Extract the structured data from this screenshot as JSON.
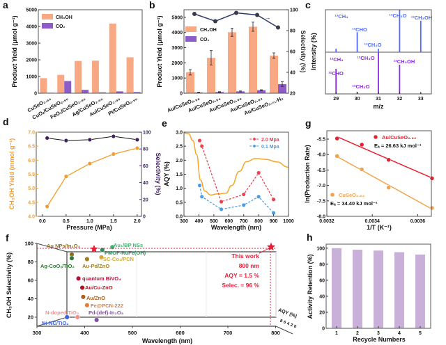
{
  "chart_data": [
    {
      "panel": "a",
      "type": "bar",
      "categories": [
        "CuSeO₂.₉₀",
        "CuOₓ/CuSeO₂.₉₀",
        "FeOₓ/CuSeO₂.₉₀",
        "Ag/CuSeO₂.₉₀",
        "Au/CuSeO₂.₉₀",
        "Pt/CuSeO₂.₉₀"
      ],
      "series": [
        {
          "name": "CH₃OH",
          "color": "#f8a882",
          "values": [
            900,
            1100,
            1930,
            1950,
            4170,
            2150
          ]
        },
        {
          "name": "CO₂",
          "color": "#8e5cc8",
          "values": [
            30,
            730,
            200,
            50,
            110,
            70
          ]
        }
      ],
      "ylabel": "Product Yield (μmol g⁻¹)",
      "ylim": [
        0,
        5000
      ],
      "yticks": [
        "0",
        "1000",
        "2000",
        "3000",
        "4000",
        "5000"
      ],
      "legend": "top-left"
    },
    {
      "panel": "b",
      "type": "bar",
      "categories": [
        "Au/CuSeO₂.₉₈",
        "Au/CuSeO₂.₉₄",
        "Au/CuSeO₂.₉₀",
        "Au/CuSeO₂.₈₂",
        "Au/CuSeO₂.₇₁-H₂"
      ],
      "series": [
        {
          "name": "CH₃OH",
          "color": "#f8a882",
          "values": [
            1380,
            2330,
            4020,
            4380,
            2480
          ],
          "errors": [
            180,
            480,
            270,
            300,
            180
          ]
        },
        {
          "name": "CO₂",
          "color": "#8e5cc8",
          "values": [
            50,
            80,
            120,
            200,
            600
          ],
          "errors": [
            20,
            20,
            30,
            30,
            150
          ]
        },
        {
          "type": "line",
          "axis": "right",
          "color": "#2e3a6e",
          "values": [
            96,
            89,
            97,
            95,
            83
          ]
        }
      ],
      "ylabel": "Product Yield (μmol g⁻¹)",
      "y2label": "Selectivity (%)",
      "ylim": [
        0,
        5500
      ],
      "y2lim": [
        20,
        100
      ],
      "yticks": [
        "0",
        "1000",
        "2000",
        "3000",
        "4000",
        "5000"
      ],
      "y2ticks": [
        "20",
        "40",
        "60",
        "80",
        "100"
      ],
      "arrow": "→",
      "legend": "middle-left"
    },
    {
      "panel": "c",
      "type": "bar",
      "xlabel": "m/z",
      "ylabel": "Intensity (%)",
      "xlim": [
        28.5,
        33.5
      ],
      "xticks": [
        "29",
        "30",
        "31",
        "32",
        "33"
      ],
      "top": {
        "color": "#4f6bff",
        "mz": [
          29,
          30,
          31,
          32,
          33
        ],
        "intensity": [
          0.08,
          0.47,
          0.08,
          1.0,
          0.74
        ],
        "labels": [
          "¹³CH₄",
          "¹³CHO",
          "¹³CH₂O",
          "¹³CH₃O",
          "¹³CH₃OH"
        ]
      },
      "bottom": {
        "color": "#8a2be2",
        "mz": [
          29,
          30,
          31,
          32,
          33
        ],
        "intensity": [
          0.6,
          0.05,
          1.0,
          0.7,
          0.02
        ],
        "labels": [
          "¹²CH₄",
          "¹²CHO",
          "¹²CH₂O",
          "¹²CH₃O",
          "¹²CH₃OH"
        ]
      }
    },
    {
      "panel": "d",
      "type": "line",
      "x": [
        0.1,
        0.5,
        1.0,
        1.5,
        2.0
      ],
      "series": [
        {
          "axis": "left",
          "color": "#f39c2b",
          "values": [
            4.35,
            5.42,
            5.88,
            6.22,
            6.43
          ]
        },
        {
          "axis": "right",
          "color": "#3c1f5c",
          "values": [
            93,
            90,
            91,
            95,
            91
          ]
        }
      ],
      "xlabel": "Pressure (MPa)",
      "ylabel": "CH₃OH Yield (mmol g⁻¹)",
      "y2label": "Selectivity (%)",
      "xlim": [
        -0.13,
        2.09
      ],
      "ylim": [
        4.0,
        7.0
      ],
      "y2lim": [
        0,
        100
      ],
      "xticks": [
        "0.0",
        "0.5",
        "1.0",
        "1.5",
        "2.0"
      ],
      "yticks": [
        "4.0",
        "4.5",
        "5.0",
        "5.5",
        "6.0",
        "6.5",
        "7.0"
      ],
      "y2ticks": [
        "0",
        "20",
        "40",
        "60",
        "80",
        "100"
      ]
    },
    {
      "panel": "e",
      "type": "line",
      "series": [
        {
          "name": "2.0 Mpa",
          "color": "#e8414f",
          "x": [
            405,
            420,
            550,
            700,
            800,
            900
          ],
          "values": [
            2.7,
            2.5,
            0.52,
            0.78,
            1.55,
            0.6
          ]
        },
        {
          "name": "0.1 Mpa",
          "color": "#4a9be0",
          "x": [
            405,
            420,
            550,
            700,
            800,
            900
          ],
          "values": [
            1.1,
            0.7,
            0.25,
            0.4,
            0.7,
            0.12
          ]
        },
        {
          "color": "#f5a623",
          "x": [
            300,
            330,
            360,
            385,
            410,
            440,
            480,
            520,
            580,
            620,
            670,
            720,
            780,
            850,
            920,
            1000
          ],
          "values": [
            2.97,
            2.95,
            2.7,
            2.2,
            1.3,
            0.9,
            0.76,
            0.8,
            0.82,
            1.1,
            1.6,
            1.95,
            2.06,
            2.03,
            1.94,
            1.75
          ]
        }
      ],
      "xlabel": "Wavelength (nm)",
      "ylabel": "AQY (%)",
      "xlim": [
        300,
        1000
      ],
      "ylim": [
        0,
        3.0
      ],
      "xticks": [
        "300",
        "400",
        "500",
        "600",
        "700",
        "800",
        "900",
        "1000"
      ],
      "yticks": [
        "0.0",
        "0.5",
        "1.0",
        "1.5",
        "2.0",
        "2.5",
        "3.0"
      ],
      "legend": "top-right"
    },
    {
      "panel": "f",
      "type": "scatter",
      "xlabel": "Wavelength (nm)",
      "ylabel": "CH₃OH Selectivity (%)",
      "zlabel": "AQY (%)",
      "xticks": [
        "300",
        "400",
        "500",
        "600",
        "700",
        "800"
      ],
      "yticks": [
        "20",
        "40",
        "60",
        "80",
        "100"
      ],
      "zticks": [
        "8",
        "6",
        "4",
        "2",
        "0"
      ],
      "points": [
        {
          "label": "Au NPs/In₂O₃",
          "x": 373,
          "y": 88,
          "color": "#8a6d1f"
        },
        {
          "label": "Au₁/BP NSs",
          "x": 458,
          "y": 96,
          "color": "#3cb371"
        },
        {
          "label": "PMOF-RuFe(OH)",
          "x": 437,
          "y": 93,
          "color": "#2e8b57"
        },
        {
          "label": "SC-Co₁/PCN",
          "x": 435,
          "y": 85,
          "color": "#d9a830"
        },
        {
          "label": "Ag-CoOₓ/TiO₂",
          "x": 373,
          "y": 84,
          "color": "#2e7d32"
        },
        {
          "label": "Au-Pd/ZnO",
          "x": 405,
          "y": 83,
          "color": "#a08020"
        },
        {
          "label": "quantum BiVO₄",
          "x": 387,
          "y": 62,
          "color": "#b0103a"
        },
        {
          "label": "Au/Cu-ZnO",
          "x": 395,
          "y": 52,
          "color": "#b01020"
        },
        {
          "label": "Au/ZnO",
          "x": 397,
          "y": 42,
          "color": "#b0601a"
        },
        {
          "label": "Fe@PCN-222",
          "x": 405,
          "y": 33,
          "color": "#e08040"
        },
        {
          "label": "N-doped TiO₂",
          "x": 385,
          "y": 20,
          "color": "#f09090"
        },
        {
          "label": "Pd-(def)-In₂O₃",
          "x": 425,
          "y": 17,
          "color": "#8050a0"
        },
        {
          "label": "Ni-NC/TiO₂",
          "x": 363,
          "y": 20,
          "color": "#4060e0"
        }
      ],
      "highlight": {
        "x": 800,
        "y": 96,
        "aqy": 1.5,
        "color": "#e8203a",
        "lines": [
          "This work",
          "800 nm",
          "AQY = 1.5 %",
          "Selec. = 96 %"
        ]
      }
    },
    {
      "panel": "g",
      "type": "scatter",
      "series": [
        {
          "name": "Au/CuSeO₂.₈₂",
          "color": "#e8202f",
          "x": [
            0.003245,
            0.003354,
            0.003472,
            0.003663
          ],
          "values": [
            -5.48,
            -5.68,
            -6.17,
            -6.77
          ],
          "annotation": "Eₐ = 26.63 kJ mol⁻¹"
        },
        {
          "name": "CuSeO₂.₈₂",
          "color": "#f5a24c",
          "x": [
            0.003245,
            0.003354,
            0.003472,
            0.003663
          ],
          "values": [
            -6.05,
            -6.48,
            -7.07,
            -7.73
          ],
          "annotation": "Eₐ = 34.40 kJ mol⁻¹"
        }
      ],
      "xlabel": "1/T (K⁻¹)",
      "ylabel": "ln(Production Rate)",
      "xlim": [
        0.0032,
        0.00366
      ],
      "ylim": [
        -8.0,
        -5.23
      ],
      "xticks": [
        "0.0032",
        "0.0034",
        "0.0036"
      ],
      "yticks": [
        "-5.5",
        "-6.0",
        "-6.5",
        "-7.0",
        "-7.5",
        "-8.0"
      ]
    },
    {
      "panel": "h",
      "type": "bar",
      "categories": [
        "1",
        "2",
        "3",
        "4",
        "5"
      ],
      "values": [
        100,
        98,
        97,
        95,
        92
      ],
      "color": "#c8b0d8",
      "xlabel": "Recycle Numbers",
      "ylabel": "Activity Retention (%)",
      "ylim": [
        0,
        105
      ],
      "yticks": [
        "0",
        "20",
        "40",
        "60",
        "80",
        "100"
      ]
    }
  ]
}
